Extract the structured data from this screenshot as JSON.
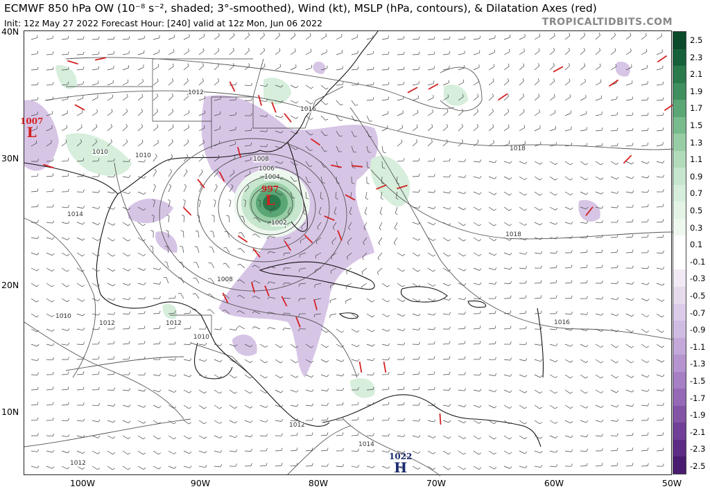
{
  "header": {
    "title": "ECMWF 850 hPa OW (10⁻⁸ s⁻², shaded; 3°-smoothed), Wind (kt), MSLP (hPa, contours), & Dilatation Axes (red)",
    "subtitle": "Init: 12z May 27 2022   Forecast Hour: [240]   valid at 12z Mon, Jun 06 2022",
    "brand": "TROPICALTIDBITS.COM"
  },
  "axes": {
    "lat_labels": [
      "40N",
      "30N",
      "20N",
      "10N"
    ],
    "lon_labels": [
      "100W",
      "90W",
      "80W",
      "70W",
      "60W",
      "50W"
    ]
  },
  "colorbar": {
    "labels": [
      "2.5",
      "2.3",
      "2.1",
      "1.9",
      "1.7",
      "1.5",
      "1.3",
      "1.1",
      "0.9",
      "0.7",
      "0.5",
      "0.3",
      "0.1",
      "-0.1",
      "-0.3",
      "-0.5",
      "-0.7",
      "-0.9",
      "-1.1",
      "-1.3",
      "-1.5",
      "-1.7",
      "-1.9",
      "-2.1",
      "-2.3",
      "-2.5"
    ],
    "colors": [
      "#0b4a2a",
      "#17613a",
      "#2a7a4c",
      "#3f8f5f",
      "#5aa674",
      "#78bb8c",
      "#97cda5",
      "#b1dbbb",
      "#c6e6cd",
      "#d6eedb",
      "#e3f4e6",
      "#eef8ef",
      "#ffffff",
      "#ffffff",
      "#f1eaf4",
      "#e6dbec",
      "#dcccea",
      "#d0bce2",
      "#c3a8d9",
      "#b594cf",
      "#a67fc4",
      "#9569b6",
      "#8354a6",
      "#713f97",
      "#5d2c85",
      "#4a1c70"
    ]
  },
  "pressure_centers": [
    {
      "value": "1007",
      "letter": "L",
      "color": "#d42020"
    },
    {
      "value": "997",
      "letter": "L",
      "color": "#d42020"
    },
    {
      "value": "1022",
      "letter": "H",
      "color": "#1a2a6e"
    }
  ],
  "isobar_labels": [
    "1012",
    "1016",
    "1010",
    "1010",
    "1008",
    "1006",
    "1004",
    "1002",
    "1018",
    "1014",
    "1018",
    "1008",
    "1012",
    "1010",
    "1012",
    "1010",
    "1016",
    "1012",
    "1014",
    "1012"
  ]
}
